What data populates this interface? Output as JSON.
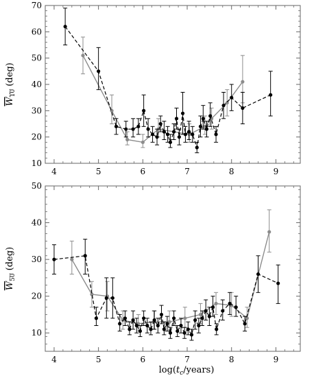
{
  "chart_data": [
    {
      "type": "line",
      "id": "top",
      "xlim": [
        3.8,
        9.55
      ],
      "ylim": [
        10,
        70
      ],
      "xticks": [
        4,
        5,
        6,
        7,
        8,
        9
      ],
      "yticks": [
        10,
        20,
        30,
        40,
        50,
        60,
        70
      ],
      "ylabel_var": "W",
      "ylabel_sub": "10",
      "ylabel_unit": " (deg)",
      "xlabel": "",
      "grid": false,
      "series": [
        {
          "style": "black-dashed",
          "color": "#000000",
          "points": [
            {
              "x": 4.25,
              "y": 62,
              "lo": 55,
              "hi": 69
            },
            {
              "x": 5.0,
              "y": 45,
              "lo": 38,
              "hi": 54
            },
            {
              "x": 5.4,
              "y": 24,
              "lo": 21,
              "hi": 27
            },
            {
              "x": 5.62,
              "y": 23,
              "lo": 20,
              "hi": 26
            },
            {
              "x": 5.78,
              "y": 23,
              "lo": 20,
              "hi": 27
            },
            {
              "x": 5.9,
              "y": 24,
              "lo": 21,
              "hi": 27
            },
            {
              "x": 6.02,
              "y": 30,
              "lo": 24,
              "hi": 36
            },
            {
              "x": 6.12,
              "y": 23,
              "lo": 20,
              "hi": 27
            },
            {
              "x": 6.22,
              "y": 21,
              "lo": 18,
              "hi": 24
            },
            {
              "x": 6.32,
              "y": 20,
              "lo": 17,
              "hi": 23
            },
            {
              "x": 6.4,
              "y": 25,
              "lo": 22,
              "hi": 28
            },
            {
              "x": 6.48,
              "y": 22,
              "lo": 19,
              "hi": 26
            },
            {
              "x": 6.56,
              "y": 21,
              "lo": 18,
              "hi": 24
            },
            {
              "x": 6.62,
              "y": 18,
              "lo": 16,
              "hi": 21
            },
            {
              "x": 6.7,
              "y": 22,
              "lo": 19,
              "hi": 25
            },
            {
              "x": 6.76,
              "y": 27,
              "lo": 23,
              "hi": 31
            },
            {
              "x": 6.82,
              "y": 20,
              "lo": 17,
              "hi": 23
            },
            {
              "x": 6.9,
              "y": 29,
              "lo": 21,
              "hi": 37
            },
            {
              "x": 6.96,
              "y": 21,
              "lo": 18,
              "hi": 24
            },
            {
              "x": 7.04,
              "y": 22,
              "lo": 19,
              "hi": 26
            },
            {
              "x": 7.12,
              "y": 21,
              "lo": 18,
              "hi": 24
            },
            {
              "x": 7.22,
              "y": 16,
              "lo": 14,
              "hi": 18
            },
            {
              "x": 7.3,
              "y": 24,
              "lo": 20,
              "hi": 28
            },
            {
              "x": 7.36,
              "y": 27,
              "lo": 23,
              "hi": 32
            },
            {
              "x": 7.44,
              "y": 23,
              "lo": 20,
              "hi": 26
            },
            {
              "x": 7.52,
              "y": 28,
              "lo": 24,
              "hi": 33
            },
            {
              "x": 7.65,
              "y": 21,
              "lo": 18,
              "hi": 24
            },
            {
              "x": 7.82,
              "y": 32,
              "lo": 27,
              "hi": 37
            },
            {
              "x": 8.0,
              "y": 35,
              "lo": 30,
              "hi": 40
            },
            {
              "x": 8.25,
              "y": 31,
              "lo": 25,
              "hi": 37
            },
            {
              "x": 8.88,
              "y": 36,
              "lo": 28,
              "hi": 45
            }
          ]
        },
        {
          "style": "gray-solid",
          "color": "#8c8c8c",
          "points": [
            {
              "x": 4.65,
              "y": 51,
              "lo": 44,
              "hi": 58
            },
            {
              "x": 5.3,
              "y": 30,
              "lo": 25,
              "hi": 36
            },
            {
              "x": 5.65,
              "y": 19,
              "lo": 17,
              "hi": 22
            },
            {
              "x": 6.0,
              "y": 18,
              "lo": 16,
              "hi": 21
            },
            {
              "x": 6.35,
              "y": 23,
              "lo": 20,
              "hi": 27
            },
            {
              "x": 6.7,
              "y": 22,
              "lo": 19,
              "hi": 25
            },
            {
              "x": 7.05,
              "y": 21,
              "lo": 18,
              "hi": 25
            },
            {
              "x": 7.4,
              "y": 24,
              "lo": 21,
              "hi": 28
            },
            {
              "x": 7.55,
              "y": 27,
              "lo": 23,
              "hi": 31
            },
            {
              "x": 7.9,
              "y": 33,
              "lo": 28,
              "hi": 38
            },
            {
              "x": 8.25,
              "y": 41,
              "lo": 33,
              "hi": 51
            }
          ]
        }
      ]
    },
    {
      "type": "line",
      "id": "bottom",
      "xlim": [
        3.8,
        9.55
      ],
      "ylim": [
        5,
        50
      ],
      "xticks": [
        4,
        5,
        6,
        7,
        8,
        9
      ],
      "yticks": [
        10,
        20,
        30,
        40,
        50
      ],
      "ylabel_var": "W",
      "ylabel_sub": "50",
      "ylabel_unit": " (deg)",
      "xlabel_pre": "log(",
      "xlabel_var": "t",
      "xlabel_sub": "c",
      "xlabel_post": "/years)",
      "grid": false,
      "series": [
        {
          "style": "black-dashed",
          "color": "#000000",
          "points": [
            {
              "x": 4.0,
              "y": 30,
              "lo": 26,
              "hi": 34
            },
            {
              "x": 4.7,
              "y": 31,
              "lo": 26,
              "hi": 35.5
            },
            {
              "x": 4.95,
              "y": 14,
              "lo": 12,
              "hi": 17
            },
            {
              "x": 5.18,
              "y": 19.5,
              "lo": 14,
              "hi": 25
            },
            {
              "x": 5.32,
              "y": 19.5,
              "lo": 14,
              "hi": 25
            },
            {
              "x": 5.48,
              "y": 12.5,
              "lo": 10.5,
              "hi": 15
            },
            {
              "x": 5.6,
              "y": 14,
              "lo": 12,
              "hi": 16
            },
            {
              "x": 5.7,
              "y": 11,
              "lo": 9.5,
              "hi": 13
            },
            {
              "x": 5.78,
              "y": 13.5,
              "lo": 11,
              "hi": 16
            },
            {
              "x": 5.86,
              "y": 12,
              "lo": 10,
              "hi": 14
            },
            {
              "x": 5.94,
              "y": 10.5,
              "lo": 9,
              "hi": 12
            },
            {
              "x": 6.02,
              "y": 14,
              "lo": 12,
              "hi": 16
            },
            {
              "x": 6.1,
              "y": 12,
              "lo": 10,
              "hi": 14
            },
            {
              "x": 6.18,
              "y": 11,
              "lo": 9.5,
              "hi": 13
            },
            {
              "x": 6.26,
              "y": 13.5,
              "lo": 11,
              "hi": 16
            },
            {
              "x": 6.34,
              "y": 12,
              "lo": 10,
              "hi": 14
            },
            {
              "x": 6.42,
              "y": 15,
              "lo": 12.5,
              "hi": 17.5
            },
            {
              "x": 6.48,
              "y": 11,
              "lo": 9.5,
              "hi": 13
            },
            {
              "x": 6.55,
              "y": 12.5,
              "lo": 10.5,
              "hi": 14.5
            },
            {
              "x": 6.62,
              "y": 10,
              "lo": 8.5,
              "hi": 11.5
            },
            {
              "x": 6.7,
              "y": 14,
              "lo": 12,
              "hi": 16
            },
            {
              "x": 6.78,
              "y": 10.5,
              "lo": 9,
              "hi": 12
            },
            {
              "x": 6.86,
              "y": 12,
              "lo": 10,
              "hi": 14
            },
            {
              "x": 6.94,
              "y": 10,
              "lo": 8.5,
              "hi": 11.5
            },
            {
              "x": 7.02,
              "y": 11,
              "lo": 9.5,
              "hi": 13
            },
            {
              "x": 7.1,
              "y": 9.5,
              "lo": 8,
              "hi": 11
            },
            {
              "x": 7.18,
              "y": 13.5,
              "lo": 11,
              "hi": 16
            },
            {
              "x": 7.26,
              "y": 12,
              "lo": 10,
              "hi": 14
            },
            {
              "x": 7.34,
              "y": 14,
              "lo": 12,
              "hi": 16
            },
            {
              "x": 7.42,
              "y": 16,
              "lo": 13.5,
              "hi": 19
            },
            {
              "x": 7.5,
              "y": 14.5,
              "lo": 12,
              "hi": 17
            },
            {
              "x": 7.58,
              "y": 17,
              "lo": 14.5,
              "hi": 20
            },
            {
              "x": 7.66,
              "y": 11,
              "lo": 9.5,
              "hi": 12.5
            },
            {
              "x": 7.8,
              "y": 16,
              "lo": 13.5,
              "hi": 19
            },
            {
              "x": 7.96,
              "y": 18,
              "lo": 15,
              "hi": 21
            },
            {
              "x": 8.1,
              "y": 17,
              "lo": 14.5,
              "hi": 20
            },
            {
              "x": 8.3,
              "y": 12.5,
              "lo": 10.5,
              "hi": 14.5
            },
            {
              "x": 8.6,
              "y": 26,
              "lo": 21,
              "hi": 31
            },
            {
              "x": 9.05,
              "y": 23.5,
              "lo": 18,
              "hi": 28.5
            }
          ]
        },
        {
          "style": "gray-solid",
          "color": "#8c8c8c",
          "points": [
            {
              "x": 4.4,
              "y": 30,
              "lo": 26,
              "hi": 35
            },
            {
              "x": 4.85,
              "y": 20.5,
              "lo": 17,
              "hi": 24
            },
            {
              "x": 5.2,
              "y": 20,
              "lo": 16,
              "hi": 24
            },
            {
              "x": 5.55,
              "y": 13.5,
              "lo": 11,
              "hi": 16
            },
            {
              "x": 5.9,
              "y": 12.5,
              "lo": 10.5,
              "hi": 15
            },
            {
              "x": 6.25,
              "y": 13,
              "lo": 11,
              "hi": 16
            },
            {
              "x": 6.6,
              "y": 13,
              "lo": 10.5,
              "hi": 16
            },
            {
              "x": 6.95,
              "y": 14,
              "lo": 11.5,
              "hi": 17
            },
            {
              "x": 7.3,
              "y": 15,
              "lo": 12.5,
              "hi": 18
            },
            {
              "x": 7.65,
              "y": 18,
              "lo": 15,
              "hi": 21
            },
            {
              "x": 8.0,
              "y": 17.5,
              "lo": 14.5,
              "hi": 21
            },
            {
              "x": 8.35,
              "y": 14,
              "lo": 11.5,
              "hi": 17
            },
            {
              "x": 8.85,
              "y": 37.5,
              "lo": 32,
              "hi": 43.5
            }
          ]
        }
      ]
    }
  ]
}
